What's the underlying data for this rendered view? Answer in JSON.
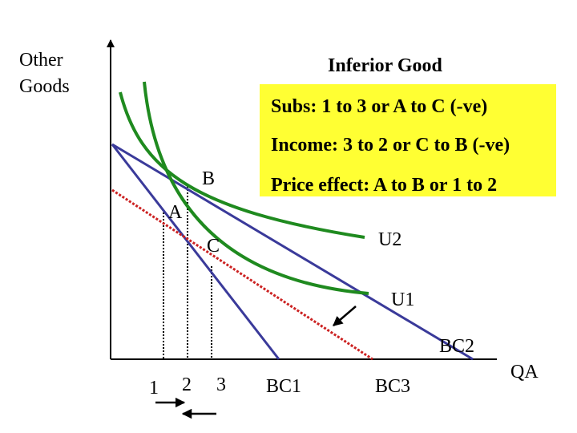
{
  "title": "Inferior Good",
  "axes": {
    "y_label": [
      "Other",
      "Goods"
    ],
    "x_label": "QA"
  },
  "info_box": {
    "lines": [
      "Subs: 1 to 3  or A to C (-ve)",
      "Income: 3 to 2 or C to B (-ve)",
      "Price effect: A to B or 1 to 2"
    ],
    "color": "#ffff33"
  },
  "points": {
    "a": "A",
    "b": "B",
    "c": "C"
  },
  "curves": {
    "u1": "U1",
    "u2": "U2"
  },
  "budget_lines": {
    "bc1": "BC1",
    "bc2": "BC2",
    "bc3": "BC3"
  },
  "quantities": {
    "q1": "1",
    "q2": "2",
    "q3": "3"
  },
  "colors": {
    "indifference": "#1f8a1f",
    "budget": "#3a3a9a",
    "compensated": "#cc2222"
  },
  "icons": [
    "arrow-right-icon",
    "arrow-left-icon",
    "arrow-down-left-icon"
  ]
}
